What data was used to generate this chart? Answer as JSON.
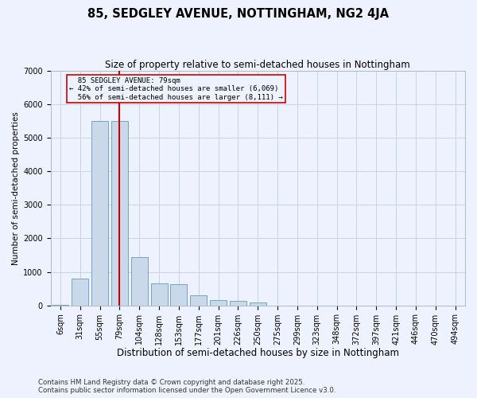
{
  "title": "85, SEDGLEY AVENUE, NOTTINGHAM, NG2 4JA",
  "subtitle": "Size of property relative to semi-detached houses in Nottingham",
  "xlabel": "Distribution of semi-detached houses by size in Nottingham",
  "ylabel": "Number of semi-detached properties",
  "categories": [
    "6sqm",
    "31sqm",
    "55sqm",
    "79sqm",
    "104sqm",
    "128sqm",
    "153sqm",
    "177sqm",
    "201sqm",
    "226sqm",
    "250sqm",
    "275sqm",
    "299sqm",
    "323sqm",
    "348sqm",
    "372sqm",
    "397sqm",
    "421sqm",
    "446sqm",
    "470sqm",
    "494sqm"
  ],
  "values": [
    25,
    800,
    5500,
    5500,
    1450,
    650,
    630,
    300,
    150,
    130,
    80,
    0,
    0,
    0,
    0,
    0,
    0,
    0,
    0,
    0,
    0
  ],
  "bar_color": "#c9d9ea",
  "bar_edge_color": "#6699bb",
  "vline_x_index": 3,
  "vline_color": "#cc0000",
  "property_label": "85 SEDGLEY AVENUE: 79sqm",
  "smaller_pct": "42%",
  "smaller_count": "6,069",
  "larger_pct": "56%",
  "larger_count": "8,111",
  "annotation_box_color": "#cc0000",
  "bg_color": "#eef2ff",
  "plot_bg_color": "#eef2ff",
  "grid_color": "#c8d4e8",
  "footnote1": "Contains HM Land Registry data © Crown copyright and database right 2025.",
  "footnote2": "Contains public sector information licensed under the Open Government Licence v3.0.",
  "ylim": [
    0,
    7000
  ],
  "yticks": [
    0,
    1000,
    2000,
    3000,
    4000,
    5000,
    6000,
    7000
  ],
  "title_fontsize": 10.5,
  "subtitle_fontsize": 8.5,
  "xlabel_fontsize": 8.5,
  "ylabel_fontsize": 7.5,
  "tick_fontsize": 7,
  "footnote_fontsize": 6.2
}
